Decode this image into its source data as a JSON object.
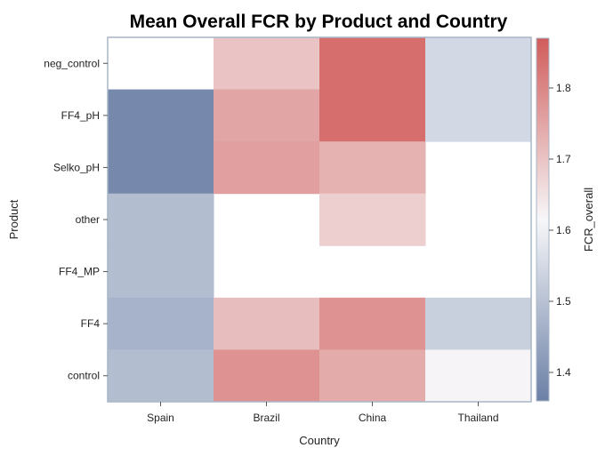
{
  "chart_data": {
    "type": "heatmap",
    "title": "Mean Overall FCR by Product and Country",
    "xlabel": "Country",
    "ylabel": "Product",
    "x_categories": [
      "Spain",
      "Brazil",
      "China",
      "Thailand"
    ],
    "y_categories": [
      "neg_control",
      "FF4_pH",
      "Selko_pH",
      "other",
      "FF4_MP",
      "FF4",
      "control"
    ],
    "values": [
      [
        null,
        1.7,
        1.84,
        1.55
      ],
      [
        1.38,
        1.75,
        1.84,
        1.55
      ],
      [
        1.38,
        1.76,
        1.73,
        null
      ],
      [
        1.49,
        null,
        1.68,
        null
      ],
      [
        1.49,
        null,
        null,
        null
      ],
      [
        1.47,
        1.71,
        1.78,
        1.53
      ],
      [
        1.49,
        1.78,
        1.74,
        1.62
      ]
    ],
    "colorbar": {
      "label": "FCR_overall",
      "min": 1.36,
      "max": 1.87,
      "mid": 1.615,
      "ticks": [
        "1.4",
        "1.5",
        "1.6",
        "1.7",
        "1.8"
      ],
      "low_color": "#6b80a6",
      "mid_color": "#f7f7f9",
      "high_color": "#d05c5a"
    },
    "grid": false,
    "legend": "right"
  }
}
